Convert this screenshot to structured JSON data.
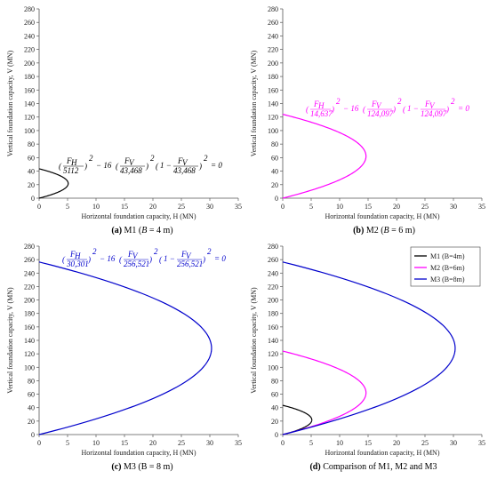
{
  "captions": [
    {
      "label": "(a)",
      "text": "M1 (",
      "var": "B",
      "rest": " = 4 m)"
    },
    {
      "label": "(b)",
      "text": "M2 (",
      "var": "B",
      "rest": " = 6 m)"
    },
    {
      "label": "(c)",
      "text": "M3 (B = 8 m)",
      "var": "",
      "rest": ""
    },
    {
      "label": "(d)",
      "text": "Comparison of M1, M2 and M3",
      "var": "",
      "rest": ""
    }
  ],
  "colors": {
    "M1": "#000000",
    "M2": "#ff00ff",
    "M3": "#0000cc"
  },
  "chart_data": [
    {
      "type": "line",
      "xlabel": "Horizontal foundation capacity, H (MN)",
      "ylabel": "Vertical foundation capacity, V (MN)",
      "xlim": [
        0,
        35
      ],
      "ylim": [
        0,
        280
      ],
      "xticks": [
        "0",
        "5",
        "10",
        "15",
        "20",
        "25",
        "30",
        "35"
      ],
      "yticks": [
        "0",
        "20",
        "40",
        "60",
        "80",
        "100",
        "120",
        "140",
        "160",
        "180",
        "200",
        "220",
        "240",
        "260",
        "280"
      ],
      "equation": {
        "fh_den": "5112",
        "fv_den1": "43,468",
        "fv_den2": "43,468"
      },
      "series": [
        {
          "key": "M1",
          "Hmax": 5.112,
          "Vmax": 43.468
        }
      ]
    },
    {
      "type": "line",
      "xlabel": "Horizontal foundation capacity, H (MN)",
      "ylabel": "Vertical foundation capacity, V (MN)",
      "xlim": [
        0,
        35
      ],
      "ylim": [
        0,
        280
      ],
      "xticks": [
        "0",
        "5",
        "10",
        "15",
        "20",
        "25",
        "30",
        "35"
      ],
      "yticks": [
        "0",
        "20",
        "40",
        "60",
        "80",
        "100",
        "120",
        "140",
        "160",
        "180",
        "200",
        "220",
        "240",
        "260",
        "280"
      ],
      "equation": {
        "fh_den": "14,637",
        "fv_den1": "124,097",
        "fv_den2": "124,097"
      },
      "series": [
        {
          "key": "M2",
          "Hmax": 14.637,
          "Vmax": 124.097
        }
      ]
    },
    {
      "type": "line",
      "xlabel": "Horizontal foundation capacity, H (MN)",
      "ylabel": "Vertical foundation capacity, V (MN)",
      "xlim": [
        0,
        35
      ],
      "ylim": [
        0,
        280
      ],
      "xticks": [
        "0",
        "5",
        "10",
        "15",
        "20",
        "25",
        "30",
        "35"
      ],
      "yticks": [
        "0",
        "20",
        "40",
        "60",
        "80",
        "100",
        "120",
        "140",
        "160",
        "180",
        "200",
        "220",
        "240",
        "260",
        "280"
      ],
      "equation": {
        "fh_den": "30,301",
        "fv_den1": "256,521",
        "fv_den2": "256,521"
      },
      "series": [
        {
          "key": "M3",
          "Hmax": 30.301,
          "Vmax": 256.521
        }
      ]
    },
    {
      "type": "line",
      "xlabel": "Horizontal foundation capacity, H (MN)",
      "ylabel": "Vertical foundation capacity, V (MN)",
      "xlim": [
        0,
        35
      ],
      "ylim": [
        0,
        280
      ],
      "xticks": [
        "0",
        "5",
        "10",
        "15",
        "20",
        "25",
        "30",
        "35"
      ],
      "yticks": [
        "0",
        "20",
        "40",
        "60",
        "80",
        "100",
        "120",
        "140",
        "160",
        "180",
        "200",
        "220",
        "240",
        "260",
        "280"
      ],
      "legend": {
        "position": "top-right",
        "entries": [
          "M1 (B=4m)",
          "M2 (B=6m)",
          "M3 (B=8m)"
        ]
      },
      "series": [
        {
          "key": "M1",
          "name": "M1 (B=4m)",
          "Hmax": 5.112,
          "Vmax": 43.468
        },
        {
          "key": "M2",
          "name": "M2 (B=6m)",
          "Hmax": 14.637,
          "Vmax": 124.097
        },
        {
          "key": "M3",
          "name": "M3 (B=8m)",
          "Hmax": 30.301,
          "Vmax": 256.521
        }
      ]
    }
  ]
}
